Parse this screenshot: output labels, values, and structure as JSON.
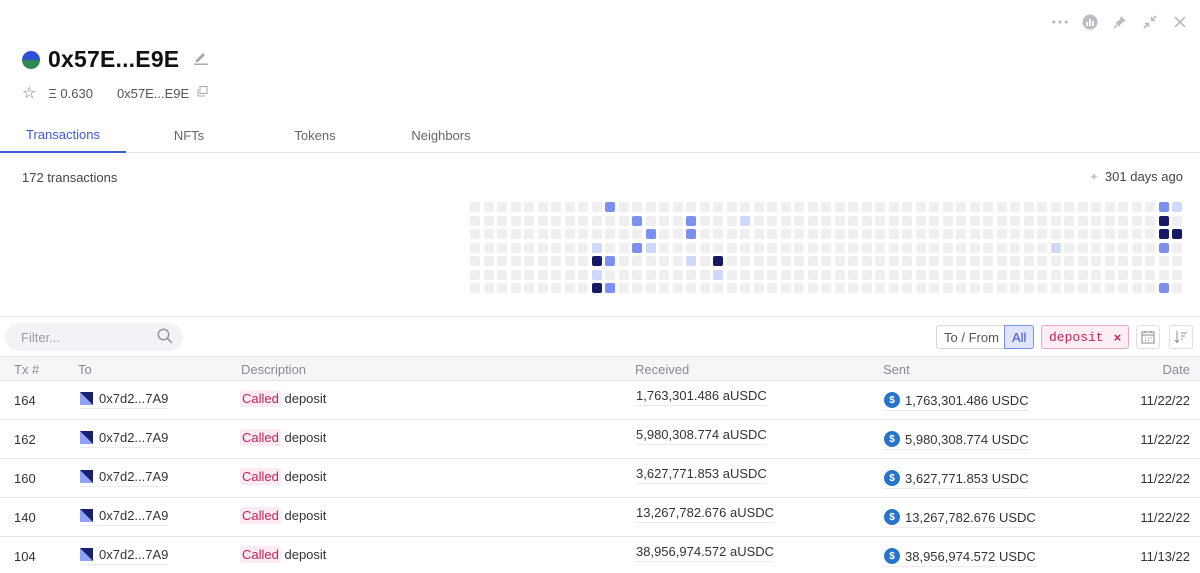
{
  "window": {
    "controls": [
      "more-icon",
      "chart-icon",
      "pin-icon",
      "collapse-icon",
      "close-icon"
    ]
  },
  "header": {
    "title": "0x57E...E9E",
    "balance": "Ξ 0.630",
    "address": "0x57E...E9E"
  },
  "tabs": [
    {
      "label": "Transactions",
      "active": true
    },
    {
      "label": "NFTs",
      "active": false
    },
    {
      "label": "Tokens",
      "active": false
    },
    {
      "label": "Neighbors",
      "active": false
    }
  ],
  "summary": {
    "count": "172 transactions",
    "age": "301 days ago"
  },
  "activity": {
    "weeks": 53,
    "days": 7,
    "colors": {
      "light": "#cfd9fb",
      "mid": "#7a91ef",
      "dark": "#161a66",
      "empty": "#efeff1"
    },
    "cells": [
      {
        "week": 10,
        "day": 0,
        "level": "mid"
      },
      {
        "week": 12,
        "day": 1,
        "level": "mid"
      },
      {
        "week": 16,
        "day": 1,
        "level": "mid"
      },
      {
        "week": 20,
        "day": 1,
        "level": "light"
      },
      {
        "week": 13,
        "day": 2,
        "level": "mid"
      },
      {
        "week": 16,
        "day": 2,
        "level": "mid"
      },
      {
        "week": 9,
        "day": 3,
        "level": "light"
      },
      {
        "week": 12,
        "day": 3,
        "level": "mid"
      },
      {
        "week": 13,
        "day": 3,
        "level": "light"
      },
      {
        "week": 43,
        "day": 3,
        "level": "light"
      },
      {
        "week": 9,
        "day": 4,
        "level": "dark"
      },
      {
        "week": 10,
        "day": 4,
        "level": "mid"
      },
      {
        "week": 16,
        "day": 4,
        "level": "light"
      },
      {
        "week": 18,
        "day": 4,
        "level": "dark"
      },
      {
        "week": 9,
        "day": 5,
        "level": "light"
      },
      {
        "week": 18,
        "day": 5,
        "level": "light"
      },
      {
        "week": 9,
        "day": 6,
        "level": "dark"
      },
      {
        "week": 10,
        "day": 6,
        "level": "mid"
      },
      {
        "week": 51,
        "day": 0,
        "level": "mid"
      },
      {
        "week": 52,
        "day": 0,
        "level": "light"
      },
      {
        "week": 51,
        "day": 1,
        "level": "dark"
      },
      {
        "week": 51,
        "day": 2,
        "level": "dark"
      },
      {
        "week": 52,
        "day": 2,
        "level": "dark"
      },
      {
        "week": 51,
        "day": 3,
        "level": "mid"
      },
      {
        "week": 51,
        "day": 6,
        "level": "mid"
      }
    ]
  },
  "filters": {
    "search_placeholder": "Filter...",
    "to_from_label": "To / From",
    "all_label": "All",
    "chip_label": "deposit"
  },
  "table": {
    "headers": {
      "tx": "Tx #",
      "to": "To",
      "description": "Description",
      "received": "Received",
      "sent": "Sent",
      "date": "Date"
    },
    "rows": [
      {
        "tx": "164",
        "to": "0x7d2...7A9",
        "called": "Called",
        "method": "deposit",
        "received": "1,763,301.486 aUSDC",
        "sent": "1,763,301.486 USDC",
        "date": "11/22/22"
      },
      {
        "tx": "162",
        "to": "0x7d2...7A9",
        "called": "Called",
        "method": "deposit",
        "received": "5,980,308.774 aUSDC",
        "sent": "5,980,308.774 USDC",
        "date": "11/22/22"
      },
      {
        "tx": "160",
        "to": "0x7d2...7A9",
        "called": "Called",
        "method": "deposit",
        "received": "3,627,771.853 aUSDC",
        "sent": "3,627,771.853 USDC",
        "date": "11/22/22"
      },
      {
        "tx": "140",
        "to": "0x7d2...7A9",
        "called": "Called",
        "method": "deposit",
        "received": "13,267,782.676 aUSDC",
        "sent": "13,267,782.676 USDC",
        "date": "11/22/22"
      },
      {
        "tx": "104",
        "to": "0x7d2...7A9",
        "called": "Called",
        "method": "deposit",
        "received": "38,956,974.572 aUSDC",
        "sent": "38,956,974.572 USDC",
        "date": "11/13/22"
      }
    ]
  }
}
